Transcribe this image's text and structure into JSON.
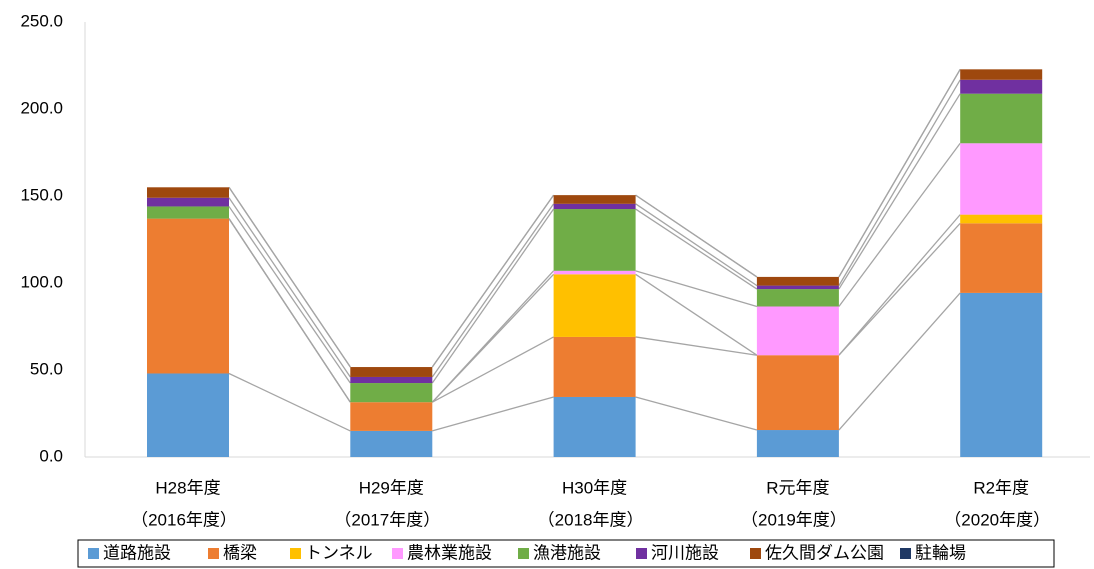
{
  "chart_data": {
    "type": "stacked_bar",
    "categories": [
      [
        "H28年度",
        "（2016年度）"
      ],
      [
        "H29年度",
        "（2017年度）"
      ],
      [
        "H30年度",
        "（2018年度）"
      ],
      [
        "R元年度",
        "（2019年度）"
      ],
      [
        "R2年度",
        "（2020年度）"
      ]
    ],
    "series": [
      {
        "name": "道路施設",
        "color": "#5b9bd5",
        "values": [
          48,
          15,
          34.5,
          15.5,
          94.3
        ]
      },
      {
        "name": "橋梁",
        "color": "#ed7d31",
        "values": [
          89,
          16.5,
          34.5,
          43,
          40
        ]
      },
      {
        "name": "トンネル",
        "color": "#ffc000",
        "values": [
          0,
          0,
          36,
          0,
          5
        ]
      },
      {
        "name": "農林業施設",
        "color": "#ff99ff",
        "values": [
          0,
          0,
          2,
          28,
          41
        ]
      },
      {
        "name": "漁港施設",
        "color": "#70ad47",
        "values": [
          7,
          11,
          35.5,
          10,
          28.5
        ]
      },
      {
        "name": "河川施設",
        "color": "#7030a0",
        "values": [
          5,
          3.5,
          3,
          2,
          8
        ]
      },
      {
        "name": "佐久間ダム公園",
        "color": "#9e480e",
        "values": [
          6,
          5.7,
          5,
          5,
          6
        ]
      },
      {
        "name": "駐輪場",
        "color": "#1f3864",
        "values": [
          0,
          0,
          0,
          0,
          0
        ]
      }
    ],
    "ylim": [
      0,
      250
    ],
    "yticks": [
      {
        "value": 0,
        "label": "0.0"
      },
      {
        "value": 50,
        "label": "50.0"
      },
      {
        "value": 100,
        "label": "100.0"
      },
      {
        "value": 150,
        "label": "150.0"
      },
      {
        "value": 200,
        "label": "200.0"
      },
      {
        "value": 250,
        "label": "250.0"
      }
    ],
    "grid": false,
    "legend": "bottom"
  }
}
